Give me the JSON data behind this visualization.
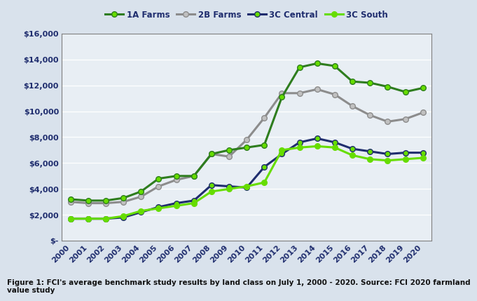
{
  "years": [
    2000,
    2001,
    2002,
    2003,
    2004,
    2005,
    2006,
    2007,
    2008,
    2009,
    2010,
    2011,
    2012,
    2013,
    2014,
    2015,
    2016,
    2017,
    2018,
    2019,
    2020
  ],
  "farms_1A": [
    3200,
    3100,
    3100,
    3300,
    3800,
    4800,
    5000,
    5000,
    6700,
    7000,
    7200,
    7400,
    11100,
    13400,
    13700,
    13500,
    12300,
    12200,
    11900,
    11500,
    11800
  ],
  "farms_2B": [
    3000,
    2900,
    2900,
    3000,
    3400,
    4200,
    4700,
    5000,
    6700,
    6500,
    7800,
    9500,
    11400,
    11400,
    11700,
    11300,
    10400,
    9700,
    9200,
    9400,
    9900
  ],
  "central_3C": [
    1700,
    1700,
    1700,
    1800,
    2200,
    2600,
    2900,
    3100,
    4300,
    4200,
    4100,
    5700,
    6700,
    7600,
    7900,
    7600,
    7100,
    6900,
    6700,
    6800,
    6800
  ],
  "south_3C": [
    1700,
    1700,
    1700,
    1900,
    2300,
    2500,
    2700,
    2900,
    3800,
    4000,
    4200,
    4500,
    7000,
    7200,
    7300,
    7200,
    6600,
    6300,
    6200,
    6300,
    6400
  ],
  "color_1A": "#2e7d1e",
  "color_2B": "#8c8c8c",
  "color_3C_central": "#1f2d6e",
  "color_3C_south": "#66dd00",
  "marker_fill_1A": "#66dd00",
  "marker_fill_2B": "#c0c0c0",
  "marker_fill_3C_central": "#66dd00",
  "marker_fill_3C_south": "#66dd00",
  "background_outer": "#d9e2ec",
  "background_plot": "#e8eef4",
  "grid_color": "#ffffff",
  "spine_color": "#7f7f7f",
  "tick_label_color": "#1f2d6e",
  "ylim": [
    0,
    16000
  ],
  "yticks": [
    0,
    2000,
    4000,
    6000,
    8000,
    10000,
    12000,
    14000,
    16000
  ],
  "ytick_labels": [
    "$-",
    "$2,000",
    "$4,000",
    "$6,000",
    "$8,000",
    "$10,000",
    "$12,000",
    "$14,000",
    "$16,000"
  ],
  "legend_labels": [
    "1A Farms",
    "2B Farms",
    "3C Central",
    "3C South"
  ],
  "caption": "Figure 1: FCI's average benchmark study results by land class on July 1, 2000 - 2020. Source: FCI 2020 farmland\nvalue study",
  "linewidth": 2.2,
  "markersize": 5.5
}
